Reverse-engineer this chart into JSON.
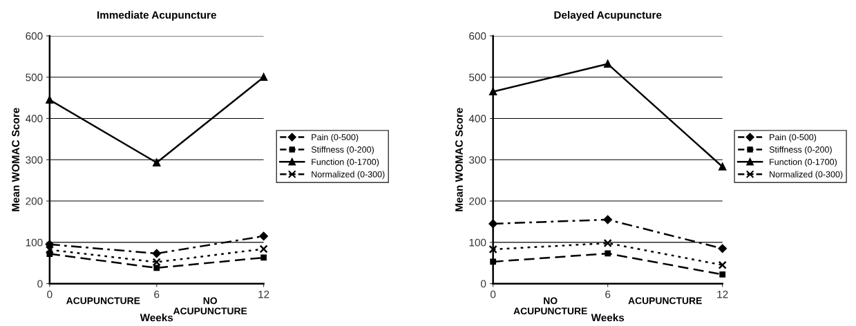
{
  "chart_data": [
    {
      "type": "line",
      "title": "Immediate Acupuncture",
      "xlabel": "Weeks",
      "ylabel": "Mean WOMAC Score",
      "x": [
        0,
        6,
        12
      ],
      "xlim": [
        0,
        12
      ],
      "xticks": [
        0,
        6,
        12
      ],
      "ylim": [
        0,
        600
      ],
      "yticks": [
        0,
        100,
        200,
        300,
        400,
        500,
        600
      ],
      "grid": "y",
      "legend": "right",
      "annotations": [
        "ACUPUNCTURE",
        "NO\nACUPUNCTURE"
      ],
      "series": [
        {
          "name": "Pain (0-500)",
          "color": "#000000",
          "marker": "diamond",
          "line_style": "dashdot",
          "values": [
            95,
            73,
            115
          ]
        },
        {
          "name": "Stiffness (0-200)",
          "color": "#000000",
          "marker": "square",
          "line_style": "dashed",
          "values": [
            72,
            38,
            63
          ]
        },
        {
          "name": "Function (0-1700)",
          "color": "#000000",
          "marker": "triangle",
          "line_style": "solid",
          "values": [
            445,
            293,
            500
          ]
        },
        {
          "name": "Normalized (0-300)",
          "color": "#000000",
          "marker": "cross",
          "line_style": "dotted",
          "values": [
            82,
            52,
            84
          ]
        }
      ]
    },
    {
      "type": "line",
      "title": "Delayed Acupuncture",
      "xlabel": "Weeks",
      "ylabel": "Mean WOMAC Score",
      "x": [
        0,
        6,
        12
      ],
      "xlim": [
        0,
        12
      ],
      "xticks": [
        0,
        6,
        12
      ],
      "ylim": [
        0,
        600
      ],
      "yticks": [
        0,
        100,
        200,
        300,
        400,
        500,
        600
      ],
      "grid": "y",
      "legend": "right",
      "annotations": [
        "NO\nACUPUNCTURE",
        "ACUPUNCTURE"
      ],
      "series": [
        {
          "name": "Pain (0-500)",
          "color": "#000000",
          "marker": "diamond",
          "line_style": "dashdot",
          "values": [
            145,
            155,
            85
          ]
        },
        {
          "name": "Stiffness (0-200)",
          "color": "#000000",
          "marker": "square",
          "line_style": "dashed",
          "values": [
            53,
            73,
            22
          ]
        },
        {
          "name": "Function (0-1700)",
          "color": "#000000",
          "marker": "triangle",
          "line_style": "solid",
          "values": [
            465,
            532,
            283
          ]
        },
        {
          "name": "Normalized (0-300)",
          "color": "#000000",
          "marker": "cross",
          "line_style": "dotted",
          "values": [
            83,
            98,
            45
          ]
        }
      ]
    }
  ]
}
